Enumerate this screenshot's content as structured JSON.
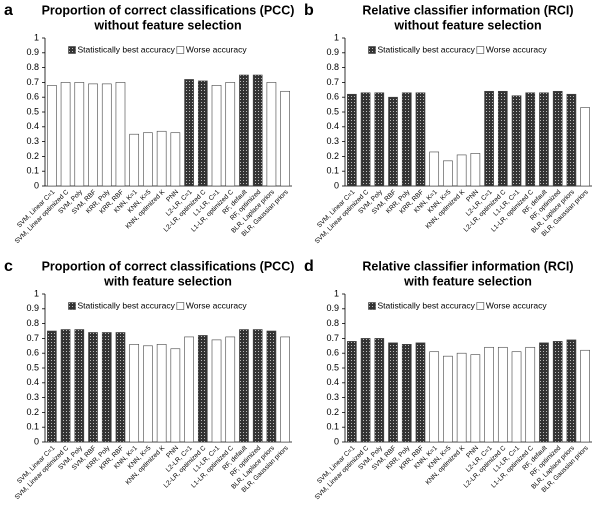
{
  "chart_data": [
    {
      "type": "bar",
      "panel": "a",
      "title": "Proportion of correct classifications  (PCC)",
      "subtitle": "without feature selection",
      "categories": [
        "SVM, Linear C=1",
        "SVM, Linear optimized C",
        "SVM, Poly",
        "SVM, RBF",
        "KRR, Poly",
        "KRR, RBF",
        "KNN, K=1",
        "KNN, K=5",
        "KNN, optimized K",
        "PNN",
        "L2-LR, C=1",
        "L2-LR, optimized C",
        "L1-LR, C=1",
        "L1-LR, optimized C",
        "RF, default",
        "RF, optimized",
        "BLR, Laplace priors",
        "BLR, Gaussian priors"
      ],
      "series": [
        {
          "name": "Statistically best accuracy",
          "color": "#333333",
          "values": [
            null,
            null,
            null,
            null,
            null,
            null,
            null,
            null,
            null,
            null,
            0.72,
            0.71,
            null,
            null,
            0.75,
            0.75,
            null,
            null
          ]
        },
        {
          "name": "Worse accuracy",
          "color": "#ffffff",
          "values": [
            0.68,
            0.7,
            0.7,
            0.69,
            0.69,
            0.7,
            0.35,
            0.36,
            0.37,
            0.36,
            null,
            null,
            0.68,
            0.7,
            null,
            null,
            0.7,
            0.64
          ]
        }
      ],
      "ylim": [
        0,
        1
      ],
      "yticks": [
        0,
        0.1,
        0.2,
        0.3,
        0.4,
        0.5,
        0.6,
        0.7,
        0.8,
        0.9,
        1
      ],
      "legend": "top-center"
    },
    {
      "type": "bar",
      "panel": "b",
      "title": "Relative classifier information (RCI)",
      "subtitle": "without feature selection",
      "categories": [
        "SVM, Linear C=1",
        "SVM, Linear optimized C",
        "SVM, Poly",
        "SVM, RBF",
        "KRR, Poly",
        "KRR, RBF",
        "KNN, K=1",
        "KNN, K=5",
        "KNN, optimized K",
        "PNN",
        "L2-LR, C=1",
        "L2-LR, optimized C",
        "L1-LR, C=1",
        "L1-LR, optimized C",
        "RF, default",
        "RF, optimized",
        "BLR, Laplace priors",
        "BLR, Gaussian priors"
      ],
      "series": [
        {
          "name": "Statistically best accuracy",
          "color": "#333333",
          "values": [
            0.62,
            0.63,
            0.63,
            0.6,
            0.63,
            0.63,
            null,
            null,
            null,
            null,
            0.64,
            0.64,
            0.61,
            0.63,
            0.63,
            0.64,
            0.62,
            null
          ]
        },
        {
          "name": "Worse accuracy",
          "color": "#ffffff",
          "values": [
            null,
            null,
            null,
            null,
            null,
            null,
            0.23,
            0.17,
            0.21,
            0.22,
            null,
            null,
            null,
            null,
            null,
            null,
            null,
            0.53
          ]
        }
      ],
      "ylim": [
        0,
        1
      ],
      "yticks": [
        0,
        0.1,
        0.2,
        0.3,
        0.4,
        0.5,
        0.6,
        0.7,
        0.8,
        0.9,
        1
      ],
      "legend": "top-center"
    },
    {
      "type": "bar",
      "panel": "c",
      "title": "Proportion of correct classifications  (PCC)",
      "subtitle": "with feature selection",
      "categories": [
        "SVM, Linear C=1",
        "SVM, Linear optimized C",
        "SVM, Poly",
        "SVM, RBF",
        "KRR, Poly",
        "KRR, RBF",
        "KNN, K=1",
        "KNN, K=5",
        "KNN, optimized K",
        "PNN",
        "L2-LR, C=1",
        "L2-LR, optimized C",
        "L1-LR, C=1",
        "L1-LR, optimized C",
        "RF, default",
        "RF, optimized",
        "BLR, Laplace priors",
        "BLR, Gaussian priors"
      ],
      "series": [
        {
          "name": "Statistically best accuracy",
          "color": "#333333",
          "values": [
            0.75,
            0.76,
            0.76,
            0.74,
            0.74,
            0.74,
            null,
            null,
            null,
            null,
            null,
            0.72,
            null,
            null,
            0.76,
            0.76,
            0.75,
            null
          ]
        },
        {
          "name": "Worse accuracy",
          "color": "#ffffff",
          "values": [
            null,
            null,
            null,
            null,
            null,
            null,
            0.66,
            0.65,
            0.66,
            0.63,
            0.71,
            null,
            0.69,
            0.71,
            null,
            null,
            null,
            0.71
          ]
        }
      ],
      "ylim": [
        0,
        1
      ],
      "yticks": [
        0,
        0.1,
        0.2,
        0.3,
        0.4,
        0.5,
        0.6,
        0.7,
        0.8,
        0.9,
        1
      ],
      "legend": "top-center"
    },
    {
      "type": "bar",
      "panel": "d",
      "title": "Relative classifier information (RCI)",
      "subtitle": "with feature selection",
      "categories": [
        "SVM, Linear C=1",
        "SVM, Linear optimized C",
        "SVM, Poly",
        "SVM, RBF",
        "KRR, Poly",
        "KRR, RBF",
        "KNN, K=1",
        "KNN, K=5",
        "KNN, optimized K",
        "PNN",
        "L2-LR, C=1",
        "L2-LR, optimized C",
        "L1-LR, C=1",
        "L1-LR, optimized C",
        "RF, default",
        "RF, optimized",
        "BLR, Laplace priors",
        "BLR, Gaussian priors"
      ],
      "series": [
        {
          "name": "Statistically best accuracy",
          "color": "#333333",
          "values": [
            0.68,
            0.7,
            0.7,
            0.67,
            0.66,
            0.67,
            null,
            null,
            null,
            null,
            null,
            null,
            null,
            null,
            0.67,
            0.68,
            0.69,
            null
          ]
        },
        {
          "name": "Worse accuracy",
          "color": "#ffffff",
          "values": [
            null,
            null,
            null,
            null,
            null,
            null,
            0.61,
            0.58,
            0.6,
            0.59,
            0.64,
            0.64,
            0.61,
            0.64,
            null,
            null,
            null,
            0.62
          ]
        }
      ],
      "ylim": [
        0,
        1
      ],
      "yticks": [
        0,
        0.1,
        0.2,
        0.3,
        0.4,
        0.5,
        0.6,
        0.7,
        0.8,
        0.9,
        1
      ],
      "legend": "top-center"
    }
  ]
}
